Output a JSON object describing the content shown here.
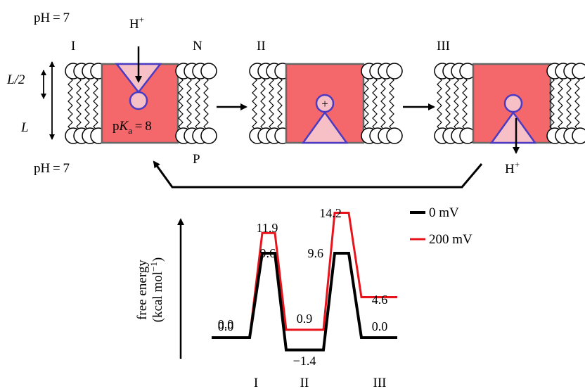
{
  "top": {
    "ph_n": "pH = 7",
    "ph_p": "pH = 7",
    "state_i": "I",
    "state_ii": "II",
    "state_iii": "III",
    "side_n": "N",
    "side_p": "P",
    "proton": "H",
    "proton_sup": "+",
    "length_half": "L/2",
    "length": "L",
    "pka_prefix": "p",
    "pka_k": "K",
    "pka_sub": "a",
    "pka_value": " = 8",
    "charge": "+",
    "colors": {
      "protein": "#f4676b",
      "site": "#f7c0c7",
      "site_edge": "#4b3ac2",
      "membrane_edge": "#666666"
    }
  },
  "chart_data": {
    "type": "line",
    "title": "",
    "ylabel_line1": "free energy",
    "ylabel_line2_prefix": "(kcal mol",
    "ylabel_line2_sup": "−1",
    "ylabel_line2_suffix": ")",
    "categories": [
      "I",
      "II",
      "III"
    ],
    "series": [
      {
        "name": "0 mV",
        "color": "#000000",
        "levels": [
          0.0,
          9.6,
          -1.4,
          9.6,
          0.0
        ],
        "labels": [
          "0.0",
          "9.6",
          "−1.4",
          "9.6",
          "0.0"
        ]
      },
      {
        "name": "200 mV",
        "color": "#e8141b",
        "levels": [
          0.0,
          11.9,
          0.9,
          14.2,
          4.6
        ],
        "labels": [
          "0.0",
          "11.9",
          "0.9",
          "14.2",
          "4.6"
        ]
      }
    ],
    "legend_position": "top-right"
  }
}
